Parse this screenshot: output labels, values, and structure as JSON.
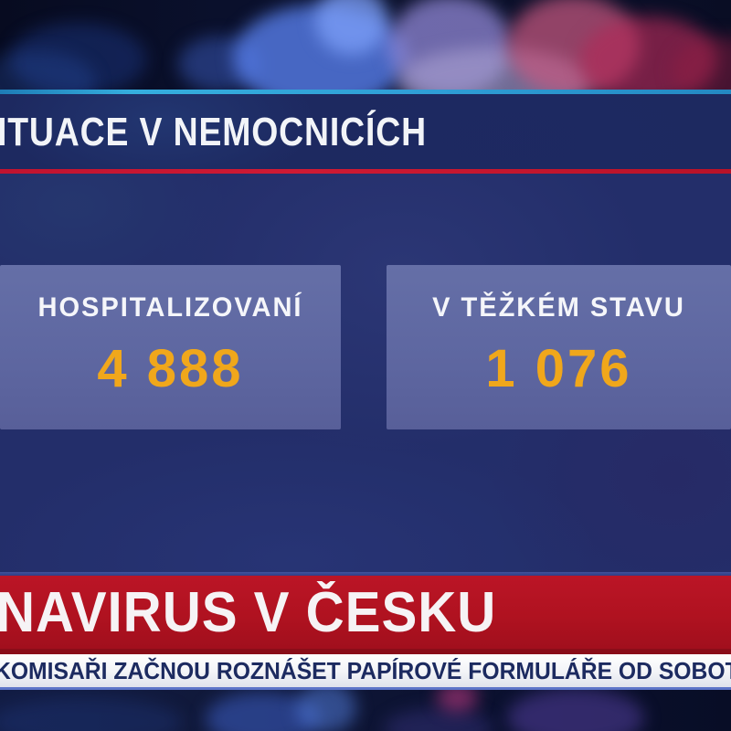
{
  "header": {
    "title": "ITUACE V NEMOCNICÍCH"
  },
  "stats": [
    {
      "label": "HOSPITALIZOVANÍ",
      "value": "4 888"
    },
    {
      "label": "V TĚŽKÉM STAVU",
      "value": "1 076"
    }
  ],
  "banner": {
    "title": "NAVIRUS V ČESKU"
  },
  "ticker": {
    "text": "KOMISAŘI ZAČNOU ROZNÁŠET PAPÍROVÉ FORMULÁŘE OD SOBOTY."
  },
  "colors": {
    "accent_orange": "#f0a71b",
    "banner_red": "#b01220",
    "divider_red": "#c3142e",
    "divider_cyan": "#2f9ed6",
    "header_navy": "#1d2960",
    "panel_navy": "#232e6a",
    "stat_box_slate": "#5e67a1",
    "ticker_bg": "#edeff5",
    "ticker_text_navy": "#1c2a60"
  }
}
